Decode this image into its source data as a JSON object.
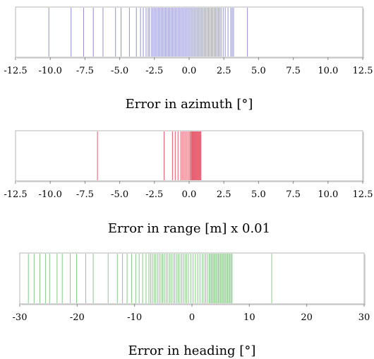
{
  "chart_data": [
    {
      "type": "rug",
      "xlabel": "Error in azimuth [°]",
      "xlim": [
        -12.5,
        12.5
      ],
      "xticks": [
        -12.5,
        -10.0,
        -7.5,
        -5.0,
        -2.5,
        0.0,
        2.5,
        5.0,
        7.5,
        10.0,
        12.5
      ],
      "tick_labels": [
        "-12.5",
        "-10.0",
        "-7.5",
        "-5.0",
        "-2.5",
        "0.0",
        "2.5",
        "5.0",
        "7.5",
        "10.0",
        "12.5"
      ],
      "color": "#6b6bc6",
      "values": [
        -10.1,
        -8.5,
        -7.6,
        -6.9,
        -6.2,
        -5.3,
        -4.9,
        -4.3,
        -3.8,
        -3.5,
        -3.3,
        -3.1,
        -2.95,
        -2.85,
        -2.7,
        -2.6,
        -2.5,
        -2.4,
        -2.3,
        -2.2,
        -2.1,
        -2.0,
        -1.9,
        -1.8,
        -1.7,
        -1.6,
        -1.5,
        -1.4,
        -1.3,
        -1.2,
        -1.1,
        -1.0,
        -0.9,
        -0.8,
        -0.7,
        -0.6,
        -0.5,
        -0.4,
        -0.3,
        -0.2,
        -0.1,
        0.0,
        0.1,
        0.2,
        0.3,
        0.4,
        0.5,
        0.6,
        0.7,
        0.8,
        0.9,
        1.0,
        1.1,
        1.2,
        1.3,
        1.4,
        1.5,
        1.6,
        1.7,
        1.8,
        1.9,
        2.0,
        2.1,
        2.2,
        2.3,
        2.45,
        2.6,
        2.8,
        3.0,
        3.1,
        3.2,
        4.2
      ]
    },
    {
      "type": "rug",
      "xlabel": "Error in range [m] x 0.01",
      "xlim": [
        -12.5,
        12.5
      ],
      "xticks": [
        -12.5,
        -10.0,
        -7.5,
        -5.0,
        -2.5,
        0.0,
        2.5,
        5.0,
        7.5,
        10.0,
        12.5
      ],
      "tick_labels": [
        "-12.5",
        "-10.0",
        "-7.5",
        "-5.0",
        "-2.5",
        "0.0",
        "2.5",
        "5.0",
        "7.5",
        "10.0",
        "12.5"
      ],
      "color": "#e0213a",
      "values": [
        -6.6,
        -1.8,
        -1.2,
        -1.0,
        -0.8,
        -0.6,
        -0.5,
        -0.4,
        -0.3,
        -0.2,
        -0.1,
        0.0,
        0.08,
        0.15,
        0.2,
        0.25,
        0.3,
        0.35,
        0.4,
        0.45,
        0.5,
        0.55,
        0.6,
        0.65,
        0.7,
        0.75,
        0.8,
        0.85
      ]
    },
    {
      "type": "rug",
      "xlabel": "Error in heading [°]",
      "xlim": [
        -30,
        30
      ],
      "xticks": [
        -30,
        -20,
        -10,
        0,
        10,
        20,
        30
      ],
      "tick_labels": [
        "-30",
        "-20",
        "-10",
        "0",
        "10",
        "20",
        "30"
      ],
      "color": "#5fb85f",
      "values": [
        -28.5,
        -27.5,
        -26.5,
        -25.5,
        -24.8,
        -23.5,
        -22.6,
        -21.2,
        -20.1,
        -18.5,
        -17.2,
        -14.6,
        -13.0,
        -12.1,
        -11.3,
        -10.5,
        -9.8,
        -9.2,
        -8.6,
        -8.0,
        -7.5,
        -7.2,
        -6.9,
        -6.6,
        -6.3,
        -6.0,
        -5.7,
        -5.4,
        -5.1,
        -4.8,
        -4.5,
        -4.2,
        -3.9,
        -3.6,
        -3.3,
        -3.0,
        -2.7,
        -2.4,
        -2.1,
        -1.8,
        -1.5,
        -1.2,
        -0.9,
        -0.6,
        -0.2,
        0.2,
        0.6,
        1.0,
        1.4,
        1.8,
        2.1,
        2.4,
        2.7,
        3.0,
        3.2,
        3.4,
        3.6,
        3.8,
        4.0,
        4.2,
        4.4,
        4.6,
        4.8,
        5.0,
        5.2,
        5.4,
        5.6,
        5.8,
        6.0,
        6.2,
        6.4,
        6.6,
        6.8,
        7.0,
        13.9
      ]
    }
  ]
}
